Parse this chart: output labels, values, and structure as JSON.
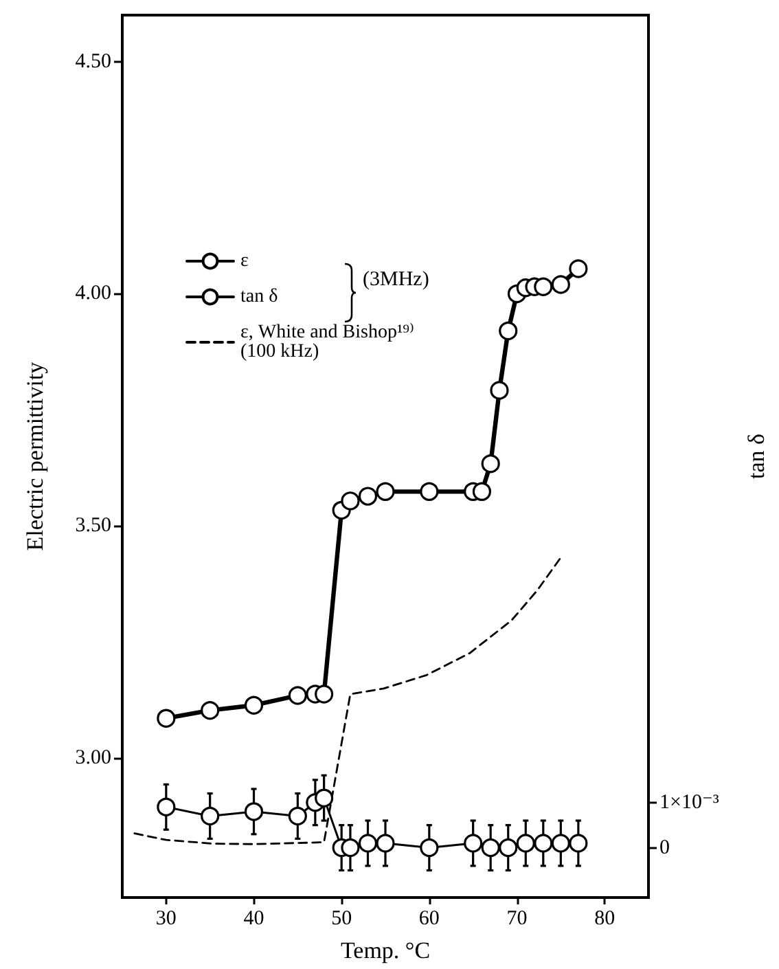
{
  "chart_data": {
    "type": "line",
    "xlabel": "Temp. °C",
    "ylabel": "Electric permittivity",
    "y2label": "tan δ",
    "xlim": [
      25,
      85
    ],
    "xticks": [
      30,
      40,
      50,
      60,
      70,
      80
    ],
    "ylim": [
      2.7,
      4.6
    ],
    "yticks": [
      {
        "value": 3,
        "label": "3.00"
      },
      {
        "value": 3.5,
        "label": "3.50"
      },
      {
        "value": 4,
        "label": "4.00"
      },
      {
        "value": 4.5,
        "label": "4.50"
      }
    ],
    "y2lim": [
      -0.0011,
      0.0184
    ],
    "y2ticks": [
      0,
      {
        "value": 0.001,
        "label": "1×10⁻³"
      }
    ],
    "legend": "top left",
    "marker": "circle",
    "grid": false,
    "annotations": [
      "(3MHz)"
    ],
    "series": [
      {
        "name": "ε",
        "color": "#000000",
        "x": [
          30,
          35,
          40,
          45,
          47,
          48,
          50,
          51,
          53,
          55,
          60,
          65,
          66,
          67,
          68,
          69,
          70,
          71,
          72,
          73,
          75,
          77
        ],
        "values": [
          3.086,
          3.103,
          3.114,
          3.135,
          3.138,
          3.138,
          3.534,
          3.554,
          3.564,
          3.574,
          3.574,
          3.574,
          3.574,
          3.634,
          3.792,
          3.92,
          4.0,
          4.013,
          4.015,
          4.015,
          4.02,
          4.054
        ]
      },
      {
        "name": "tan δ",
        "color": "#000000",
        "axis": "y2",
        "x": [
          30,
          35,
          40,
          45,
          47,
          48,
          50,
          51,
          53,
          55,
          60,
          65,
          67,
          69,
          71,
          73,
          75,
          77
        ],
        "values": [
          0.0009,
          0.0007,
          0.0008,
          0.0007,
          0.001,
          0.0011,
          0,
          0,
          0.0001,
          0.0001,
          0,
          0.0001,
          0,
          0,
          0.0001,
          0.0001,
          0.0001,
          0.0001
        ],
        "errors": [
          0.0005,
          0.0005,
          0.0005,
          0.0005,
          0.0005,
          0.0005,
          0.0005,
          0.0005,
          0.0005,
          0.0005,
          0.0005,
          0.0005,
          0.0005,
          0.0005,
          0.0005,
          0.0005,
          0.0005,
          0.0005
        ]
      },
      {
        "name": "ε, White and Bishop¹⁹⁾\n(100 kHz)",
        "color": "#000000",
        "line_style": "dashed",
        "marker": "none",
        "x": [
          26.4,
          30,
          35.4,
          40,
          48,
          51,
          54.8,
          59.7,
          64.6,
          69.4,
          72.3,
          75
        ],
        "values": [
          2.838,
          2.824,
          2.816,
          2.815,
          2.819,
          3.138,
          3.15,
          3.179,
          3.226,
          3.297,
          3.361,
          3.432
        ]
      }
    ]
  }
}
